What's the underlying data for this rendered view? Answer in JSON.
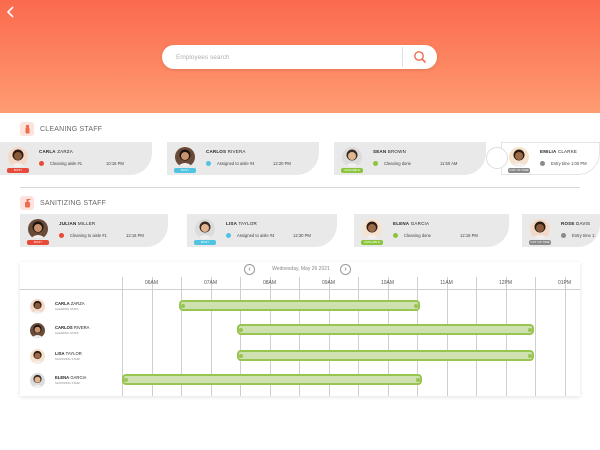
{
  "search": {
    "placeholder": "Employees search"
  },
  "sections": {
    "cleaning": {
      "title": "CLEANING STAFF"
    },
    "sanitizing": {
      "title": "SANITIZING STAFF"
    }
  },
  "cleaning_staff": [
    {
      "first": "CARLA",
      "last": "ZARZA",
      "task": "Cleaning aisle #1",
      "time": "10:16 PM",
      "badge": "BUSY",
      "status": "busy"
    },
    {
      "first": "CARLOS",
      "last": "RIVERA",
      "task": "Assigned to aisle #4",
      "time": "12:20 PM",
      "badge": "BUSY",
      "status": "assigned"
    },
    {
      "first": "SEAN",
      "last": "BROWN",
      "task": "Cleaning done",
      "time": "11:50 AM",
      "badge": "AVAILABLE",
      "status": "done"
    },
    {
      "first": "EMILIA",
      "last": "CLARKE",
      "task": "Entry time 1:00 PM",
      "time": "",
      "badge": "OUT OF TIME",
      "status": "out"
    }
  ],
  "sanitizing_staff": [
    {
      "first": "JULIAN",
      "last": "MILLER",
      "task": "Cleaning to aisle #1",
      "time": "12:16 PM",
      "badge": "BUSY",
      "status": "busy"
    },
    {
      "first": "LISA",
      "last": "TAYLOR",
      "task": "Assigned to aisle #4",
      "time": "12:30 PM",
      "badge": "BUSY",
      "status": "assigned"
    },
    {
      "first": "ELENA",
      "last": "GARCIA",
      "task": "Cleaning done",
      "time": "12:16 PM",
      "badge": "AVAILABLE",
      "status": "done"
    },
    {
      "first": "ROSE",
      "last": "DAVIS",
      "task": "Entry time 1:",
      "time": "",
      "badge": "OUT OF TIME",
      "status": "out"
    }
  ],
  "schedule": {
    "date": "Wednesday, May 26 2021",
    "hours": [
      "06AM",
      "07AM",
      "08AM",
      "09AM",
      "10AM",
      "11AM",
      "12PM",
      "01PM"
    ],
    "rows": [
      {
        "first": "CARLA",
        "last": "ZARZA",
        "role": "CLEANING STAFF",
        "start": "06:58",
        "end": "11:03"
      },
      {
        "first": "CARLOS",
        "last": "RIVERA",
        "role": "CLEANING STAFF",
        "start": "07:57",
        "end": "12:59"
      },
      {
        "first": "LISA",
        "last": "TAYLOR",
        "role": "SANITIZING STAFF",
        "start": "07:57",
        "end": "12:59"
      },
      {
        "first": "ELENA",
        "last": "GARCIA",
        "role": "SANITIZING STAFF",
        "start": "06:00",
        "end": "11:05"
      }
    ]
  },
  "colors": {
    "header_top": "#fb6a4e",
    "header_bottom": "#fe9c74",
    "busy": "#e84a3a",
    "assigned": "#4fc3e0",
    "done": "#8cc43c",
    "out": "#8a8a8a",
    "bar_fill": "#cfe1b0",
    "bar_border": "#98c551"
  }
}
